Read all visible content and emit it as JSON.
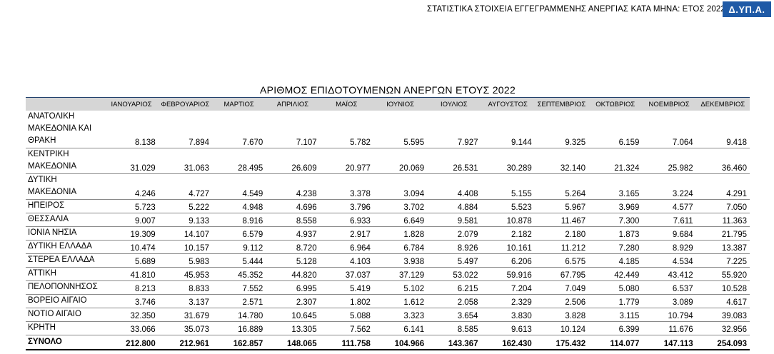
{
  "header": {
    "title": "ΣΤΑΤΙΣΤΙΚΑ ΣΤΟΙΧΕΙΑ ΕΓΓΕΓΡΑΜΜΕΝΗΣ ΑΝΕΡΓΙΑΣ ΚΑΤΑ ΜΗΝΑ: ΕΤΟΣ 2022",
    "badge": "Δ.ΥΠ.Α.",
    "badge_color": "#1f5aa6"
  },
  "table": {
    "title": "ΑΡΙΘΜΟΣ ΕΠΙΔΟΤΟΥΜΕΝΩΝ ΑΝΕΡΓΩΝ ΕΤΟΥΣ 2022",
    "header_bg": "#d6d6d6",
    "months": [
      "ΙΑΝΟΥΑΡΙΟΣ",
      "ΦΕΒΡΟΥΑΡΙΟΣ",
      "ΜΑΡΤΙΟΣ",
      "ΑΠΡΙΛΙΟΣ",
      "ΜΑΪΟΣ",
      "ΙΟΥΝΙΟΣ",
      "ΙΟΥΛΙΟΣ",
      "ΑΥΓΟΥΣΤΟΣ",
      "ΣΕΠΤΕΜΒΡΙΟΣ",
      "ΟΚΤΩΒΡΙΟΣ",
      "ΝΟΕΜΒΡΙΟΣ",
      "ΔΕΚΕΜΒΡΙΟΣ"
    ],
    "rows": [
      {
        "region": [
          "ΑΝΑΤΟΛΙΚΗ",
          "ΜΑΚΕΔΟΝΙΑ ΚΑΙ",
          "ΘΡΑΚΗ"
        ],
        "values": [
          "8.138",
          "7.894",
          "7.670",
          "7.107",
          "5.782",
          "5.595",
          "7.927",
          "9.144",
          "9.325",
          "6.159",
          "7.064",
          "9.418"
        ]
      },
      {
        "region": [
          "ΚΕΝΤΡΙΚΗ",
          "ΜΑΚΕΔΟΝΙΑ"
        ],
        "values": [
          "31.029",
          "31.063",
          "28.495",
          "26.609",
          "20.977",
          "20.069",
          "26.531",
          "30.289",
          "32.140",
          "21.324",
          "25.982",
          "36.460"
        ]
      },
      {
        "region": [
          "ΔΥΤΙΚΗ",
          "ΜΑΚΕΔΟΝΙΑ"
        ],
        "values": [
          "4.246",
          "4.727",
          "4.549",
          "4.238",
          "3.378",
          "3.094",
          "4.408",
          "5.155",
          "5.264",
          "3.165",
          "3.224",
          "4.291"
        ]
      },
      {
        "region": [
          "ΗΠΕΙΡΟΣ"
        ],
        "values": [
          "5.723",
          "5.222",
          "4.948",
          "4.696",
          "3.796",
          "3.702",
          "4.884",
          "5.523",
          "5.967",
          "3.969",
          "4.577",
          "7.050"
        ]
      },
      {
        "region": [
          "ΘΕΣΣΑΛΙΑ"
        ],
        "values": [
          "9.007",
          "9.133",
          "8.916",
          "8.558",
          "6.933",
          "6.649",
          "9.581",
          "10.878",
          "11.467",
          "7.300",
          "7.611",
          "11.363"
        ]
      },
      {
        "region": [
          "ΙΟΝΙΑ ΝΗΣΙΑ"
        ],
        "values": [
          "19.309",
          "14.107",
          "6.579",
          "4.937",
          "2.917",
          "1.828",
          "2.079",
          "2.182",
          "2.180",
          "1.873",
          "9.684",
          "21.795"
        ]
      },
      {
        "region": [
          "ΔΥΤΙΚΗ ΕΛΛΑΔΑ"
        ],
        "values": [
          "10.474",
          "10.157",
          "9.112",
          "8.720",
          "6.964",
          "6.784",
          "8.926",
          "10.161",
          "11.212",
          "7.280",
          "8.929",
          "13.387"
        ]
      },
      {
        "region": [
          "ΣΤΕΡΕΑ ΕΛΛΑΔΑ"
        ],
        "values": [
          "5.689",
          "5.983",
          "5.444",
          "5.128",
          "4.103",
          "3.938",
          "5.497",
          "6.206",
          "6.575",
          "4.185",
          "4.534",
          "7.225"
        ]
      },
      {
        "region": [
          "ΑΤΤΙΚΗ"
        ],
        "values": [
          "41.810",
          "45.953",
          "45.352",
          "44.820",
          "37.037",
          "37.129",
          "53.022",
          "59.916",
          "67.795",
          "42.449",
          "43.412",
          "55.920"
        ]
      },
      {
        "region": [
          "ΠΕΛΟΠΟΝΝΗΣΟΣ"
        ],
        "values": [
          "8.213",
          "8.833",
          "7.552",
          "6.995",
          "5.419",
          "5.102",
          "6.215",
          "7.204",
          "7.049",
          "5.080",
          "6.537",
          "10.528"
        ]
      },
      {
        "region": [
          "ΒΟΡΕΙΟ ΑΙΓΑΙΟ"
        ],
        "values": [
          "3.746",
          "3.137",
          "2.571",
          "2.307",
          "1.802",
          "1.612",
          "2.058",
          "2.329",
          "2.506",
          "1.779",
          "3.089",
          "4.617"
        ]
      },
      {
        "region": [
          "ΝΟΤΙΟ ΑΙΓΑΙΟ"
        ],
        "values": [
          "32.350",
          "31.679",
          "14.780",
          "10.645",
          "5.088",
          "3.323",
          "3.654",
          "3.830",
          "3.828",
          "3.115",
          "10.794",
          "39.083"
        ]
      },
      {
        "region": [
          "ΚΡΗΤΗ"
        ],
        "values": [
          "33.066",
          "35.073",
          "16.889",
          "13.305",
          "7.562",
          "6.141",
          "8.585",
          "9.613",
          "10.124",
          "6.399",
          "11.676",
          "32.956"
        ]
      }
    ],
    "total": {
      "label": "ΣΥΝΟΛΟ",
      "values": [
        "212.800",
        "212.961",
        "162.857",
        "148.065",
        "111.758",
        "104.966",
        "143.367",
        "162.430",
        "175.432",
        "114.077",
        "147.113",
        "254.093"
      ]
    }
  }
}
